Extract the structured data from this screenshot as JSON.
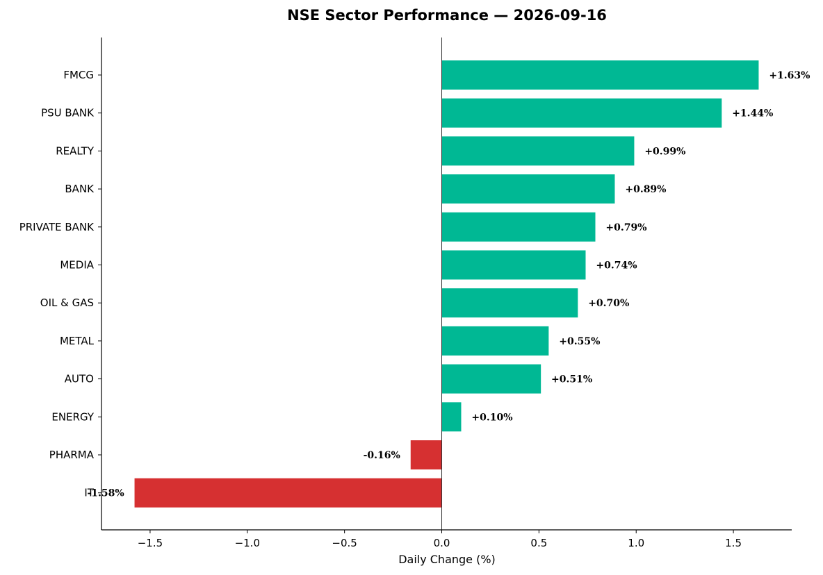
{
  "chart_data": {
    "type": "bar",
    "orientation": "horizontal",
    "title": "NSE Sector Performance — 2026-09-16",
    "xlabel": "Daily Change (%)",
    "ylabel": "",
    "xlim": [
      -1.75,
      1.8
    ],
    "x_ticks": [
      -1.5,
      -1.0,
      -0.5,
      0.0,
      0.5,
      1.0,
      1.5
    ],
    "x_tick_labels": [
      "−1.5",
      "−1.0",
      "−0.5",
      "0.0",
      "0.5",
      "1.0",
      "1.5"
    ],
    "categories": [
      "FMCG",
      "PSU BANK",
      "REALTY",
      "BANK",
      "PRIVATE BANK",
      "MEDIA",
      "OIL & GAS",
      "METAL",
      "AUTO",
      "ENERGY",
      "PHARMA",
      "IT"
    ],
    "values": [
      1.63,
      1.44,
      0.99,
      0.89,
      0.79,
      0.74,
      0.7,
      0.55,
      0.51,
      0.1,
      -0.16,
      -1.58
    ],
    "data_labels": [
      "+1.63%",
      "+1.44%",
      "+0.99%",
      "+0.89%",
      "+0.79%",
      "+0.74%",
      "+0.70%",
      "+0.55%",
      "+0.51%",
      "+0.10%",
      "-0.16%",
      "-1.58%"
    ],
    "colors": {
      "positive": "#00b894",
      "negative": "#d63031",
      "zero_line": "#333333",
      "axis": "#000000"
    },
    "grid": false,
    "legend": "none"
  }
}
